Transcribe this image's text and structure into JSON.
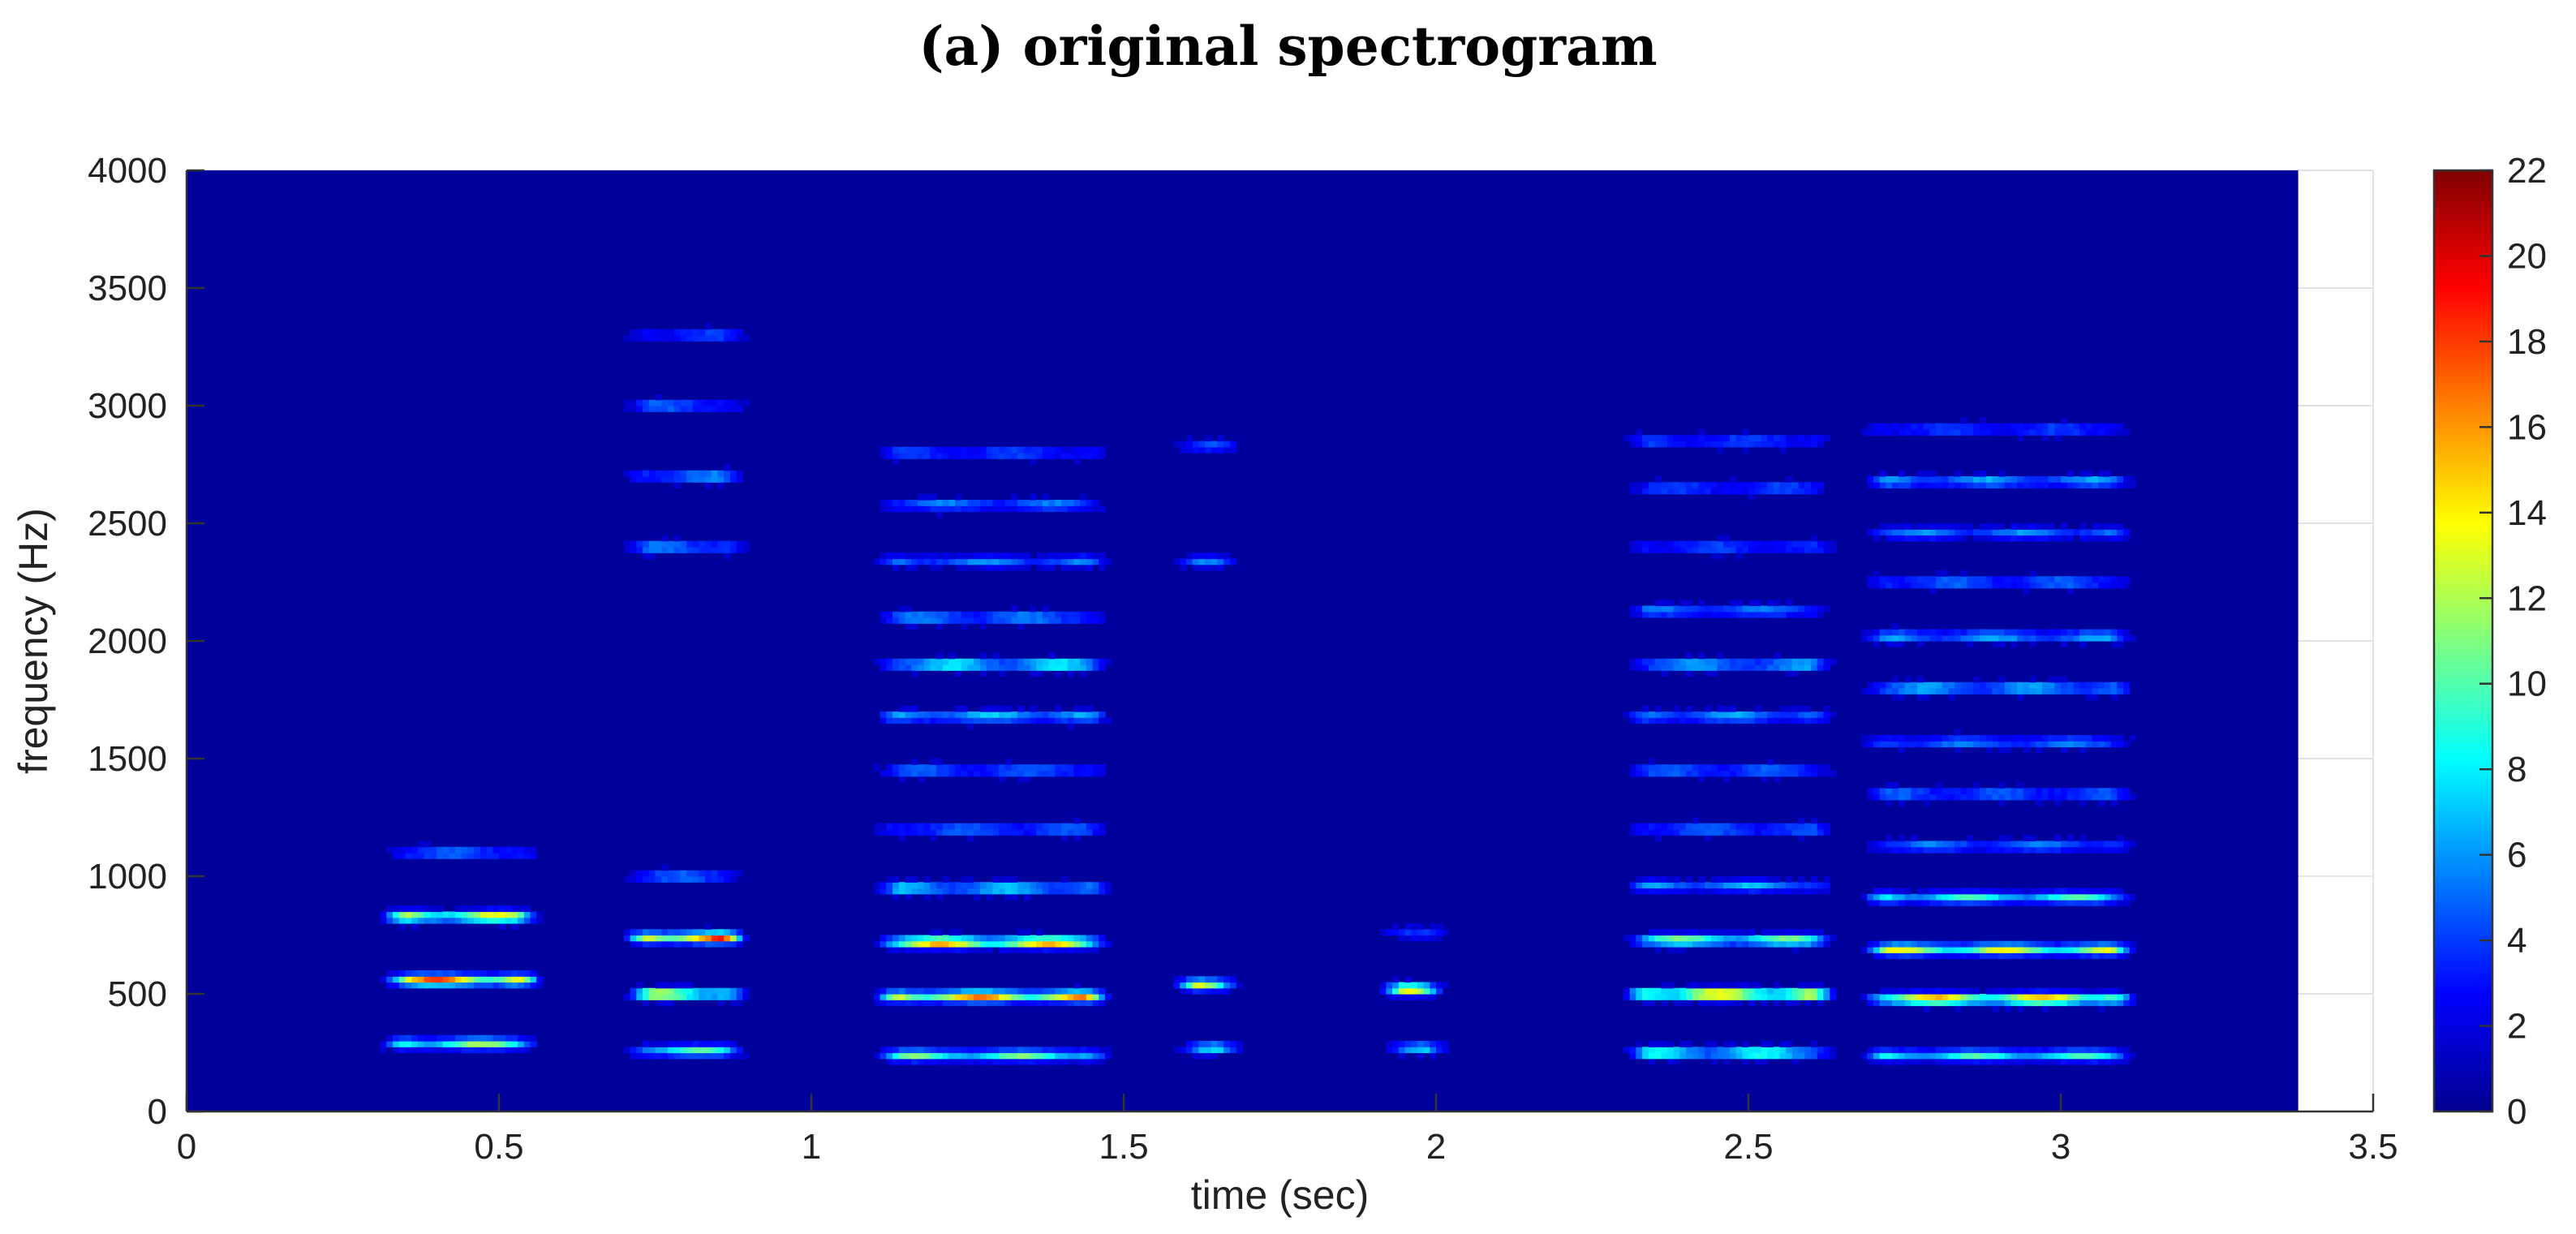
{
  "caption": "(a) original spectrogram",
  "chart_data": {
    "type": "heatmap",
    "title": "",
    "xlabel": "time (sec)",
    "ylabel": "frequency (Hz)",
    "xlim": [
      0,
      3.5
    ],
    "ylim": [
      0,
      4000
    ],
    "data_extent": {
      "time_max": 3.38,
      "freq_max": 4000
    },
    "x_ticks": [
      "0",
      "0.5",
      "1",
      "1.5",
      "2",
      "2.5",
      "3",
      "3.5"
    ],
    "y_ticks": [
      "0",
      "500",
      "1000",
      "1500",
      "2000",
      "2500",
      "3000",
      "3500",
      "4000"
    ],
    "colorbar": {
      "colormap": "jet",
      "range": [
        0,
        22
      ],
      "ticks": [
        "0",
        "2",
        "4",
        "6",
        "8",
        "10",
        "12",
        "14",
        "16",
        "18",
        "20",
        "22"
      ]
    },
    "grid": true,
    "background_level": 0.6,
    "segments": [
      {
        "t0": 0.33,
        "t1": 0.55,
        "f0": 290,
        "harmonics": [
          {
            "f": 290,
            "v": 11
          },
          {
            "f": 560,
            "v": 17
          },
          {
            "f": 830,
            "v": 14
          },
          {
            "f": 1100,
            "v": 5
          }
        ]
      },
      {
        "t0": 0.72,
        "t1": 0.88,
        "f0": 260,
        "harmonics": [
          {
            "f": 260,
            "v": 9
          },
          {
            "f": 500,
            "v": 14
          },
          {
            "f": 740,
            "v": 18
          },
          {
            "f": 1000,
            "v": 5
          },
          {
            "f": 2400,
            "v": 6
          },
          {
            "f": 2700,
            "v": 6
          },
          {
            "f": 3000,
            "v": 5
          },
          {
            "f": 3300,
            "v": 4
          }
        ]
      },
      {
        "t0": 1.12,
        "t1": 1.46,
        "f0": 240,
        "harmonics": [
          {
            "f": 240,
            "v": 10
          },
          {
            "f": 490,
            "v": 16
          },
          {
            "f": 720,
            "v": 16
          },
          {
            "f": 950,
            "v": 8
          },
          {
            "f": 1200,
            "v": 5
          },
          {
            "f": 1450,
            "v": 5
          },
          {
            "f": 1680,
            "v": 7
          },
          {
            "f": 1900,
            "v": 9
          },
          {
            "f": 2100,
            "v": 6
          },
          {
            "f": 2340,
            "v": 5
          },
          {
            "f": 2580,
            "v": 5
          },
          {
            "f": 2800,
            "v": 4
          }
        ]
      },
      {
        "t0": 1.6,
        "t1": 1.67,
        "f0": 270,
        "harmonics": [
          {
            "f": 270,
            "v": 8
          },
          {
            "f": 540,
            "v": 14
          },
          {
            "f": 2340,
            "v": 5
          },
          {
            "f": 2830,
            "v": 4
          }
        ]
      },
      {
        "t0": 1.93,
        "t1": 2.0,
        "f0": 270,
        "harmonics": [
          {
            "f": 270,
            "v": 8
          },
          {
            "f": 520,
            "v": 15
          },
          {
            "f": 760,
            "v": 5
          }
        ]
      },
      {
        "t0": 2.32,
        "t1": 2.62,
        "f0": 250,
        "harmonics": [
          {
            "f": 250,
            "v": 10
          },
          {
            "f": 500,
            "v": 17
          },
          {
            "f": 730,
            "v": 11
          },
          {
            "f": 960,
            "v": 6
          },
          {
            "f": 1200,
            "v": 5
          },
          {
            "f": 1450,
            "v": 5
          },
          {
            "f": 1680,
            "v": 6
          },
          {
            "f": 1900,
            "v": 7
          },
          {
            "f": 2130,
            "v": 5
          },
          {
            "f": 2400,
            "v": 4
          },
          {
            "f": 2650,
            "v": 4
          },
          {
            "f": 2850,
            "v": 4
          }
        ]
      },
      {
        "t0": 2.7,
        "t1": 3.1,
        "f0": 240,
        "harmonics": [
          {
            "f": 240,
            "v": 9
          },
          {
            "f": 480,
            "v": 16
          },
          {
            "f": 690,
            "v": 13
          },
          {
            "f": 910,
            "v": 9
          },
          {
            "f": 1130,
            "v": 5
          },
          {
            "f": 1350,
            "v": 5
          },
          {
            "f": 1570,
            "v": 5
          },
          {
            "f": 1800,
            "v": 7
          },
          {
            "f": 2020,
            "v": 6
          },
          {
            "f": 2250,
            "v": 5
          },
          {
            "f": 2460,
            "v": 5
          },
          {
            "f": 2680,
            "v": 6
          },
          {
            "f": 2900,
            "v": 4
          }
        ]
      }
    ]
  }
}
